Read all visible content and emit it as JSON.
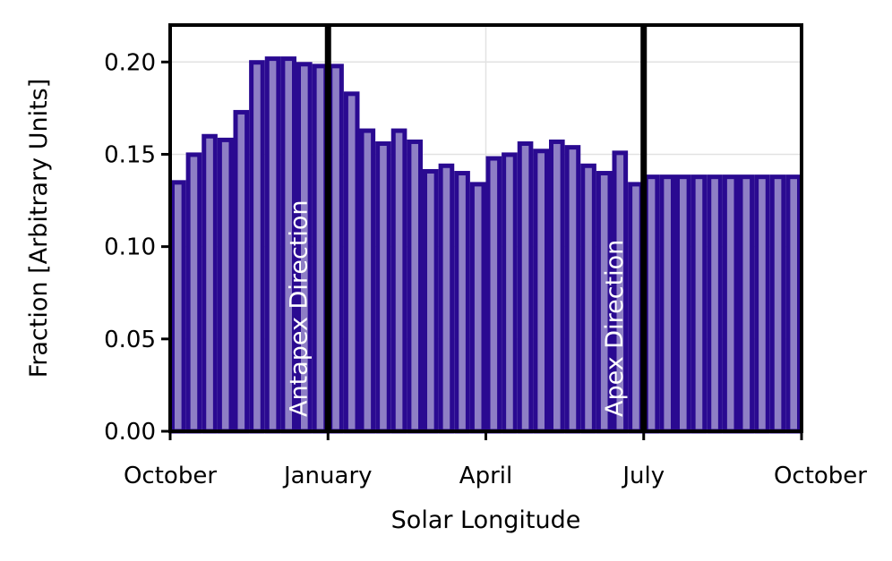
{
  "chart_data": {
    "type": "bar",
    "title": "",
    "xlabel": "Solar Longitude",
    "ylabel": "Fraction [Arbitrary Units]",
    "ylim": [
      0,
      0.22
    ],
    "xlim": [
      0,
      40
    ],
    "grid": true,
    "y_ticks": [
      0.0,
      0.05,
      0.1,
      0.15,
      0.2
    ],
    "y_tick_labels": [
      "0.00",
      "0.05",
      "0.10",
      "0.15",
      "0.20"
    ],
    "x_ticks": [
      0,
      10,
      20,
      30,
      40
    ],
    "x_tick_labels": [
      "October",
      "January",
      "April",
      "July",
      "October"
    ],
    "bins": 40,
    "values": [
      0.136,
      0.151,
      0.161,
      0.159,
      0.174,
      0.201,
      0.203,
      0.203,
      0.2,
      0.199,
      0.199,
      0.184,
      0.164,
      0.157,
      0.164,
      0.158,
      0.142,
      0.145,
      0.141,
      0.135,
      0.149,
      0.151,
      0.157,
      0.153,
      0.158,
      0.155,
      0.145,
      0.141,
      0.152,
      0.135,
      0.139,
      0.139,
      0.139,
      0.139,
      0.139,
      0.139,
      0.139,
      0.139,
      0.139,
      0.139
    ],
    "vlines": [
      {
        "x": 10,
        "label": "Antapex Direction"
      },
      {
        "x": 30,
        "label": "Apex Direction"
      }
    ],
    "bar_fill": "#8e7fc5",
    "bar_edge": "#2a0a91",
    "vline_color": "#000000"
  }
}
